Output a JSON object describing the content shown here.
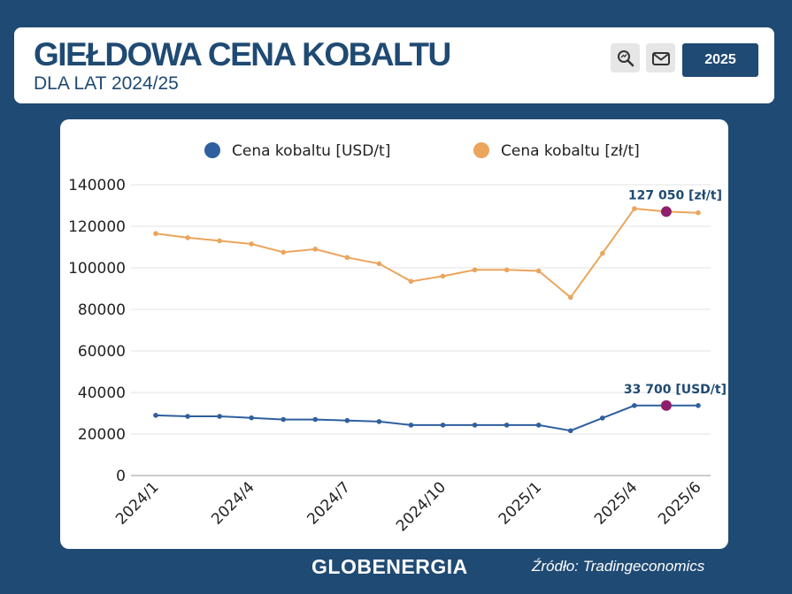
{
  "header": {
    "title": "GIEŁDOWA CENA KOBALTU",
    "subtitle": "DLA LAT 2024/25",
    "year_button": "2025"
  },
  "icons": {
    "zoom": "search-zoom-icon",
    "mail": "mail-icon"
  },
  "footer": {
    "brand": "GLOBENERGIA",
    "source": "Źródło: Tradingeconomics"
  },
  "colors": {
    "navy": "#1f4a73",
    "usd_series": "#2f5f9e",
    "pln_series": "#eba55c",
    "highlight": "#8e1f6b"
  },
  "chart_data": {
    "type": "line",
    "x": [
      "2024/1",
      "2024/2",
      "2024/3",
      "2024/4",
      "2024/5",
      "2024/6",
      "2024/7",
      "2024/8",
      "2024/9",
      "2024/10",
      "2024/11",
      "2024/12",
      "2025/1",
      "2025/2",
      "2025/3",
      "2025/4",
      "2025/5",
      "2025/6"
    ],
    "x_tick_labels": [
      "2024/1",
      "2024/4",
      "2024/7",
      "2024/10",
      "2025/1",
      "2025/4",
      "2025/6"
    ],
    "series": [
      {
        "name": "Cena kobaltu [USD/t]",
        "color": "#2f5f9e",
        "values": [
          29000,
          28500,
          28500,
          27800,
          27000,
          27000,
          26500,
          26000,
          24300,
          24300,
          24300,
          24300,
          24300,
          21600,
          27700,
          33700,
          33700,
          33700
        ],
        "highlight_index": 16,
        "annotation": "33 700 [USD/t]"
      },
      {
        "name": "Cena kobaltu [zł/t]",
        "color": "#eba55c",
        "values": [
          116500,
          114500,
          113000,
          111500,
          107500,
          109000,
          105000,
          102000,
          93500,
          96000,
          99000,
          99000,
          98500,
          85800,
          107000,
          128500,
          127050,
          126500
        ],
        "highlight_index": 16,
        "annotation": "127 050 [zł/t]"
      }
    ],
    "ylim": [
      0,
      140000
    ],
    "y_ticks": [
      0,
      20000,
      40000,
      60000,
      80000,
      100000,
      120000,
      140000
    ],
    "grid": true,
    "legend": "top"
  }
}
